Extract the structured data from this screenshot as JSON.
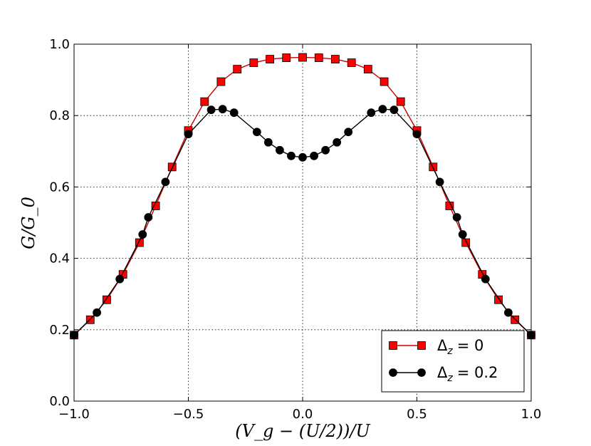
{
  "chart_data": {
    "type": "line",
    "title": "",
    "xlabel": "(V_g − (U/2))/U",
    "ylabel": "G/G_0",
    "xlim": [
      -1.0,
      1.0
    ],
    "ylim": [
      0.0,
      1.0
    ],
    "grid": true,
    "legend_position": "lower-right",
    "x_ticks": [
      -1.0,
      -0.5,
      0.0,
      0.5,
      1.0
    ],
    "x_tick_labels": [
      "−1.0",
      "−0.5",
      "0.0",
      "0.5",
      "1.0"
    ],
    "y_ticks": [
      0.0,
      0.2,
      0.4,
      0.6,
      0.8,
      1.0
    ],
    "y_tick_labels": [
      "0.0",
      "0.2",
      "0.4",
      "0.6",
      "0.8",
      "1.0"
    ],
    "series": [
      {
        "name": "Δ_z = 0",
        "legend_symbol": "Δ",
        "legend_subscript": "z",
        "legend_value": "= 0",
        "color": "#ff0000",
        "line_color": "#cc0000",
        "marker": "square",
        "x": [
          -1.0,
          -0.929,
          -0.857,
          -0.786,
          -0.714,
          -0.643,
          -0.571,
          -0.5,
          -0.429,
          -0.357,
          -0.286,
          -0.214,
          -0.143,
          -0.071,
          0.0,
          0.071,
          0.143,
          0.214,
          0.286,
          0.357,
          0.429,
          0.5,
          0.571,
          0.643,
          0.714,
          0.786,
          0.857,
          0.929,
          1.0
        ],
        "y": [
          0.185,
          0.228,
          0.284,
          0.355,
          0.444,
          0.547,
          0.656,
          0.758,
          0.839,
          0.895,
          0.93,
          0.948,
          0.958,
          0.962,
          0.963,
          0.962,
          0.958,
          0.948,
          0.93,
          0.895,
          0.839,
          0.758,
          0.656,
          0.547,
          0.444,
          0.355,
          0.284,
          0.228,
          0.185
        ]
      },
      {
        "name": "Δ_z = 0.2",
        "legend_symbol": "Δ",
        "legend_subscript": "z",
        "legend_value": "= 0.2",
        "color": "#000000",
        "line_color": "#000000",
        "marker": "circle",
        "x": [
          -1.0,
          -0.9,
          -0.8,
          -0.7,
          -0.675,
          -0.6,
          -0.5,
          -0.4,
          -0.35,
          -0.3,
          -0.2,
          -0.15,
          -0.1,
          -0.05,
          0.0,
          0.05,
          0.1,
          0.15,
          0.2,
          0.3,
          0.35,
          0.4,
          0.5,
          0.6,
          0.675,
          0.7,
          0.8,
          0.9,
          1.0
        ],
        "y": [
          0.185,
          0.248,
          0.342,
          0.467,
          0.515,
          0.614,
          0.748,
          0.816,
          0.818,
          0.808,
          0.754,
          0.725,
          0.703,
          0.687,
          0.683,
          0.687,
          0.703,
          0.725,
          0.754,
          0.808,
          0.818,
          0.816,
          0.748,
          0.614,
          0.515,
          0.467,
          0.342,
          0.248,
          0.185
        ]
      }
    ]
  }
}
